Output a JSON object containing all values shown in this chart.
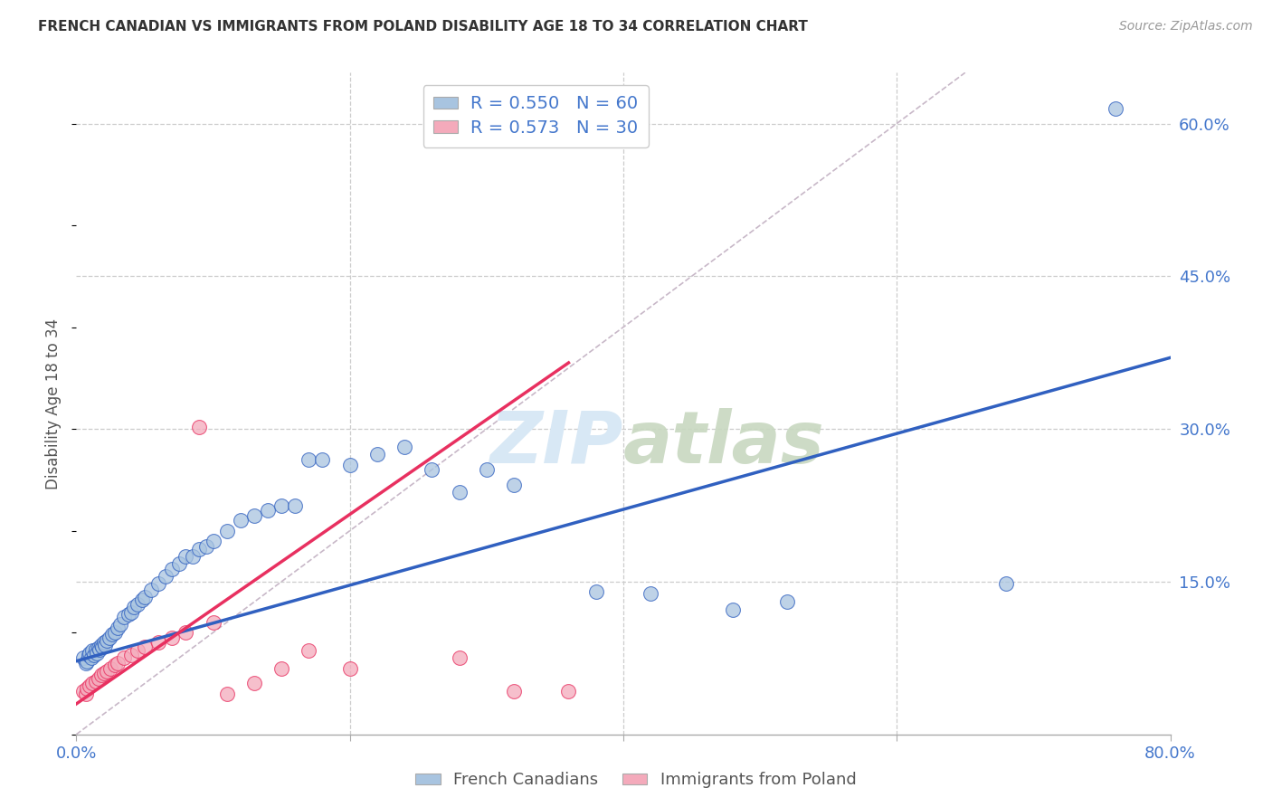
{
  "title": "FRENCH CANADIAN VS IMMIGRANTS FROM POLAND DISABILITY AGE 18 TO 34 CORRELATION CHART",
  "source": "Source: ZipAtlas.com",
  "ylabel": "Disability Age 18 to 34",
  "x_min": 0.0,
  "x_max": 0.8,
  "y_min": 0.0,
  "y_max": 0.65,
  "x_ticks": [
    0.0,
    0.2,
    0.4,
    0.6,
    0.8
  ],
  "x_tick_labels": [
    "0.0%",
    "",
    "",
    "",
    "80.0%"
  ],
  "y_tick_labels_right": [
    "",
    "15.0%",
    "30.0%",
    "45.0%",
    "60.0%"
  ],
  "y_ticks_right": [
    0.0,
    0.15,
    0.3,
    0.45,
    0.6
  ],
  "legend_blue_label": "French Canadians",
  "legend_pink_label": "Immigrants from Poland",
  "R_blue": 0.55,
  "N_blue": 60,
  "R_pink": 0.573,
  "N_pink": 30,
  "blue_color": "#A8C4E0",
  "pink_color": "#F4AABB",
  "blue_line_color": "#3060C0",
  "pink_line_color": "#E83060",
  "diagonal_color": "#C8B8C8",
  "watermark_color": "#D8E8F5",
  "blue_scatter_x": [
    0.005,
    0.007,
    0.008,
    0.009,
    0.01,
    0.011,
    0.012,
    0.013,
    0.014,
    0.015,
    0.016,
    0.017,
    0.018,
    0.019,
    0.02,
    0.021,
    0.022,
    0.024,
    0.026,
    0.028,
    0.03,
    0.032,
    0.035,
    0.038,
    0.04,
    0.042,
    0.045,
    0.048,
    0.05,
    0.055,
    0.06,
    0.065,
    0.07,
    0.075,
    0.08,
    0.085,
    0.09,
    0.095,
    0.1,
    0.11,
    0.12,
    0.13,
    0.14,
    0.15,
    0.16,
    0.17,
    0.18,
    0.2,
    0.22,
    0.24,
    0.26,
    0.28,
    0.3,
    0.32,
    0.38,
    0.42,
    0.48,
    0.52,
    0.68,
    0.76
  ],
  "blue_scatter_y": [
    0.075,
    0.07,
    0.072,
    0.078,
    0.08,
    0.075,
    0.082,
    0.078,
    0.083,
    0.08,
    0.085,
    0.083,
    0.088,
    0.086,
    0.09,
    0.088,
    0.092,
    0.095,
    0.098,
    0.1,
    0.105,
    0.108,
    0.115,
    0.118,
    0.12,
    0.125,
    0.128,
    0.132,
    0.135,
    0.142,
    0.148,
    0.155,
    0.162,
    0.168,
    0.175,
    0.175,
    0.182,
    0.185,
    0.19,
    0.2,
    0.21,
    0.215,
    0.22,
    0.225,
    0.225,
    0.27,
    0.27,
    0.265,
    0.275,
    0.282,
    0.26,
    0.238,
    0.26,
    0.245,
    0.14,
    0.138,
    0.122,
    0.13,
    0.148,
    0.615
  ],
  "pink_scatter_x": [
    0.005,
    0.007,
    0.008,
    0.01,
    0.012,
    0.014,
    0.016,
    0.018,
    0.02,
    0.022,
    0.025,
    0.028,
    0.03,
    0.035,
    0.04,
    0.045,
    0.05,
    0.06,
    0.07,
    0.08,
    0.09,
    0.1,
    0.11,
    0.13,
    0.15,
    0.17,
    0.2,
    0.28,
    0.32,
    0.36
  ],
  "pink_scatter_y": [
    0.042,
    0.04,
    0.045,
    0.048,
    0.05,
    0.052,
    0.055,
    0.058,
    0.06,
    0.062,
    0.065,
    0.068,
    0.07,
    0.075,
    0.078,
    0.082,
    0.086,
    0.09,
    0.095,
    0.1,
    0.302,
    0.11,
    0.04,
    0.05,
    0.065,
    0.082,
    0.065,
    0.075,
    0.042,
    0.042
  ],
  "blue_line_x": [
    0.0,
    0.8
  ],
  "blue_line_y": [
    0.072,
    0.37
  ],
  "pink_line_x": [
    0.0,
    0.36
  ],
  "pink_line_y": [
    0.03,
    0.365
  ],
  "diag_line_x": [
    0.0,
    0.65
  ],
  "diag_line_y": [
    0.0,
    0.65
  ]
}
